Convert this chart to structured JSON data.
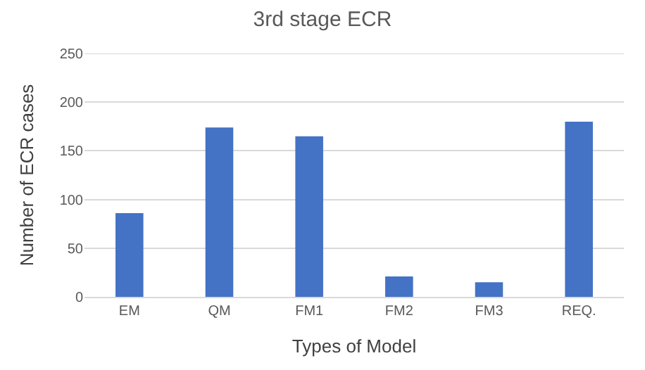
{
  "chart_data": {
    "type": "bar",
    "title": "3rd stage ECR",
    "xlabel": "Types of Model",
    "ylabel": "Number of ECR cases",
    "categories": [
      "EM",
      "QM",
      "FM1",
      "FM2",
      "FM3",
      "REQ."
    ],
    "values": [
      86,
      174,
      165,
      21,
      15,
      180
    ],
    "color": "#4472c4",
    "ylim": [
      0,
      250
    ],
    "yticks": [
      0,
      50,
      100,
      150,
      200,
      250
    ],
    "grid": "y"
  }
}
